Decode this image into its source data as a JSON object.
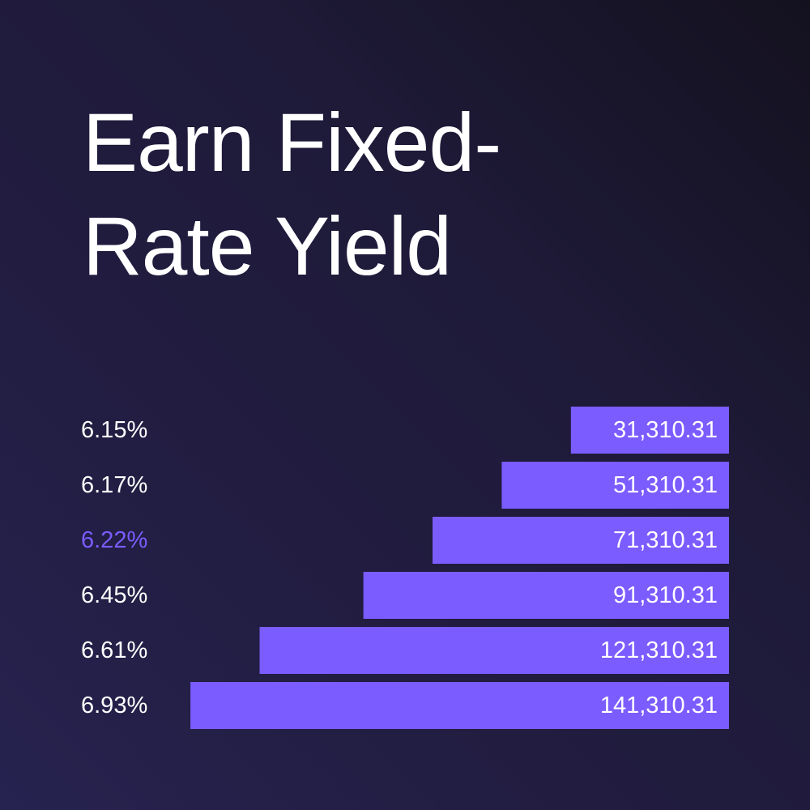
{
  "headline": {
    "line1": "Earn Fixed-",
    "line2": "Rate Yield"
  },
  "colors": {
    "bar": "#7b5cff",
    "text": "#ffffff",
    "highlight": "#7b5cff"
  },
  "chart_data": {
    "type": "bar",
    "orientation": "horizontal",
    "bar_alignment": "right",
    "categories": [
      "6.15%",
      "6.17%",
      "6.22%",
      "6.45%",
      "6.61%",
      "6.93%"
    ],
    "values": [
      31310.31,
      51310.31,
      71310.31,
      91310.31,
      121310.31,
      141310.31
    ],
    "value_labels": [
      "31,310.31",
      "51,310.31",
      "71,310.31",
      "91,310.31",
      "121,310.31",
      "141,310.31"
    ],
    "highlighted_category": "6.22%",
    "grid": false,
    "legend": "none"
  }
}
